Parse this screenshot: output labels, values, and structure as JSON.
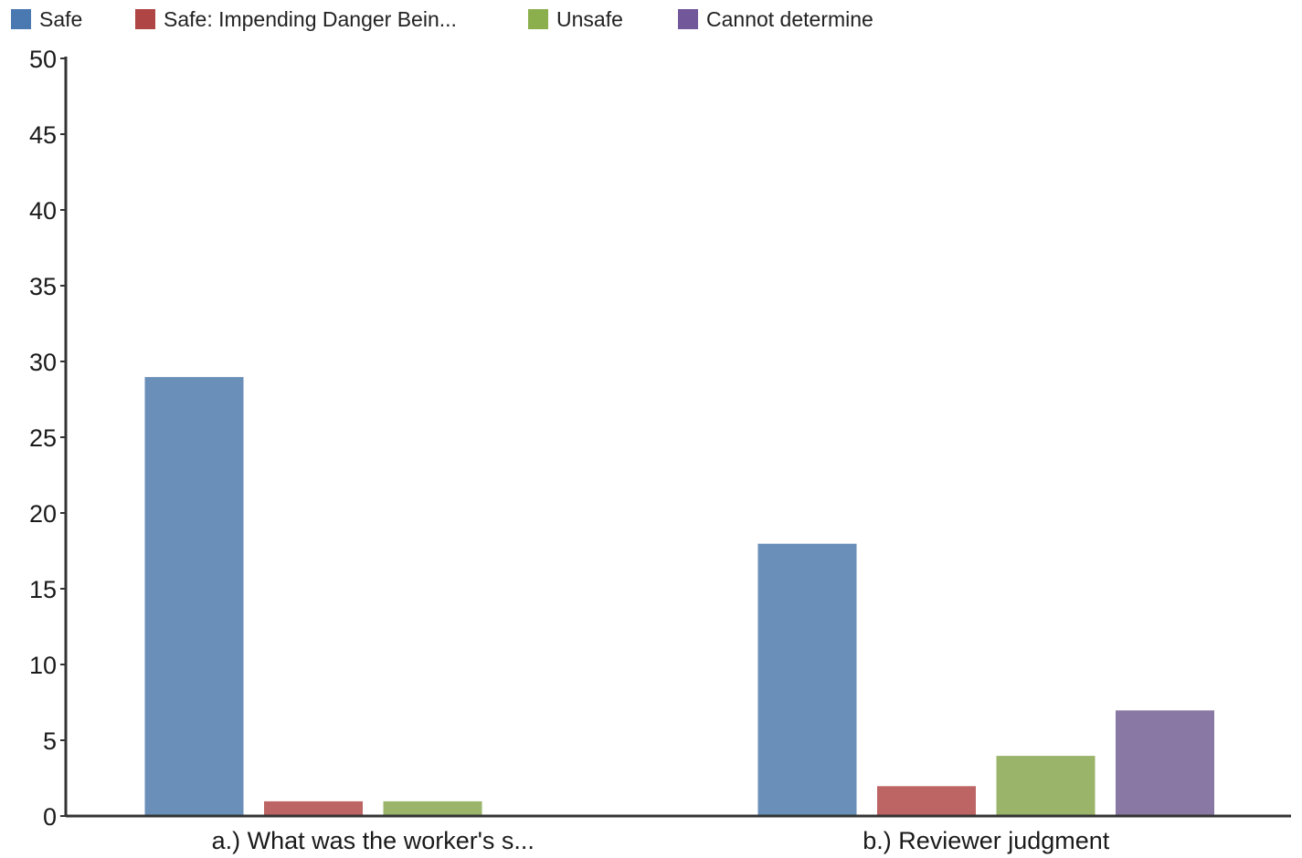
{
  "chart_data": {
    "type": "bar",
    "categories": [
      "a.) What was the worker's s...",
      "b.) Reviewer judgment"
    ],
    "series": [
      {
        "name": "Safe",
        "color": "#6a8fb8",
        "swatch_color": "#4a78b0",
        "values": [
          29,
          18
        ]
      },
      {
        "name": "Safe: Impending Danger Bein...",
        "color": "#bd6464",
        "swatch_color": "#b04545",
        "values": [
          1,
          2
        ]
      },
      {
        "name": "Unsafe",
        "color": "#9ab56a",
        "swatch_color": "#8caf4e",
        "values": [
          1,
          4
        ]
      },
      {
        "name": "Cannot determine",
        "color": "#8a78a4",
        "swatch_color": "#72579a",
        "values": [
          0,
          7
        ]
      }
    ],
    "ylim": [
      0,
      50
    ],
    "yticks": [
      0,
      5,
      10,
      15,
      20,
      25,
      30,
      35,
      40,
      45,
      50
    ],
    "grid": false,
    "legend_position": "top-left",
    "title": "",
    "xlabel": "",
    "ylabel": ""
  }
}
